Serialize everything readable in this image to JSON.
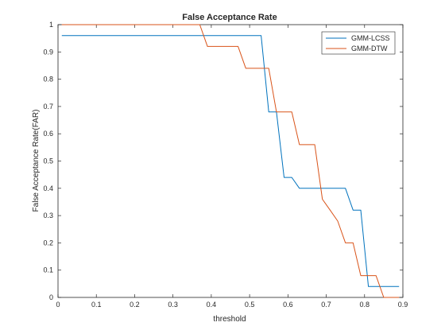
{
  "chart_data": {
    "type": "line",
    "title": "False Acceptance Rate",
    "xlabel": "threshold",
    "ylabel": "False Acceptance Rate(FAR)",
    "xlim": [
      0,
      0.9
    ],
    "ylim": [
      0,
      1
    ],
    "xticks": [
      "0",
      "0.1",
      "0.2",
      "0.3",
      "0.4",
      "0.5",
      "0.6",
      "0.7",
      "0.8",
      "0.9"
    ],
    "yticks": [
      "0",
      "0.1",
      "0.2",
      "0.3",
      "0.4",
      "0.5",
      "0.6",
      "0.7",
      "0.8",
      "0.9",
      "1"
    ],
    "grid": false,
    "legend_position": "top-right",
    "series": [
      {
        "name": "GMM-LCSS",
        "color": "#0072BD",
        "x": [
          0.01,
          0.53,
          0.55,
          0.57,
          0.59,
          0.61,
          0.63,
          0.65,
          0.67,
          0.69,
          0.71,
          0.73,
          0.75,
          0.77,
          0.79,
          0.81,
          0.83,
          0.85,
          0.87,
          0.89
        ],
        "y": [
          0.96,
          0.96,
          0.68,
          0.68,
          0.44,
          0.44,
          0.4,
          0.4,
          0.4,
          0.4,
          0.4,
          0.4,
          0.4,
          0.32,
          0.32,
          0.04,
          0.04,
          0.04,
          0.04,
          0.04
        ]
      },
      {
        "name": "GMM-DTW",
        "color": "#D95319",
        "x": [
          0.01,
          0.37,
          0.39,
          0.41,
          0.43,
          0.45,
          0.47,
          0.49,
          0.51,
          0.53,
          0.55,
          0.57,
          0.59,
          0.61,
          0.63,
          0.65,
          0.67,
          0.69,
          0.71,
          0.73,
          0.75,
          0.77,
          0.79,
          0.81,
          0.83,
          0.85,
          0.87,
          0.89
        ],
        "y": [
          1.0,
          1.0,
          0.92,
          0.92,
          0.92,
          0.92,
          0.92,
          0.84,
          0.84,
          0.84,
          0.84,
          0.68,
          0.68,
          0.68,
          0.56,
          0.56,
          0.56,
          0.36,
          0.32,
          0.28,
          0.2,
          0.2,
          0.08,
          0.08,
          0.08,
          0.0,
          0.0,
          0.0
        ]
      }
    ]
  }
}
